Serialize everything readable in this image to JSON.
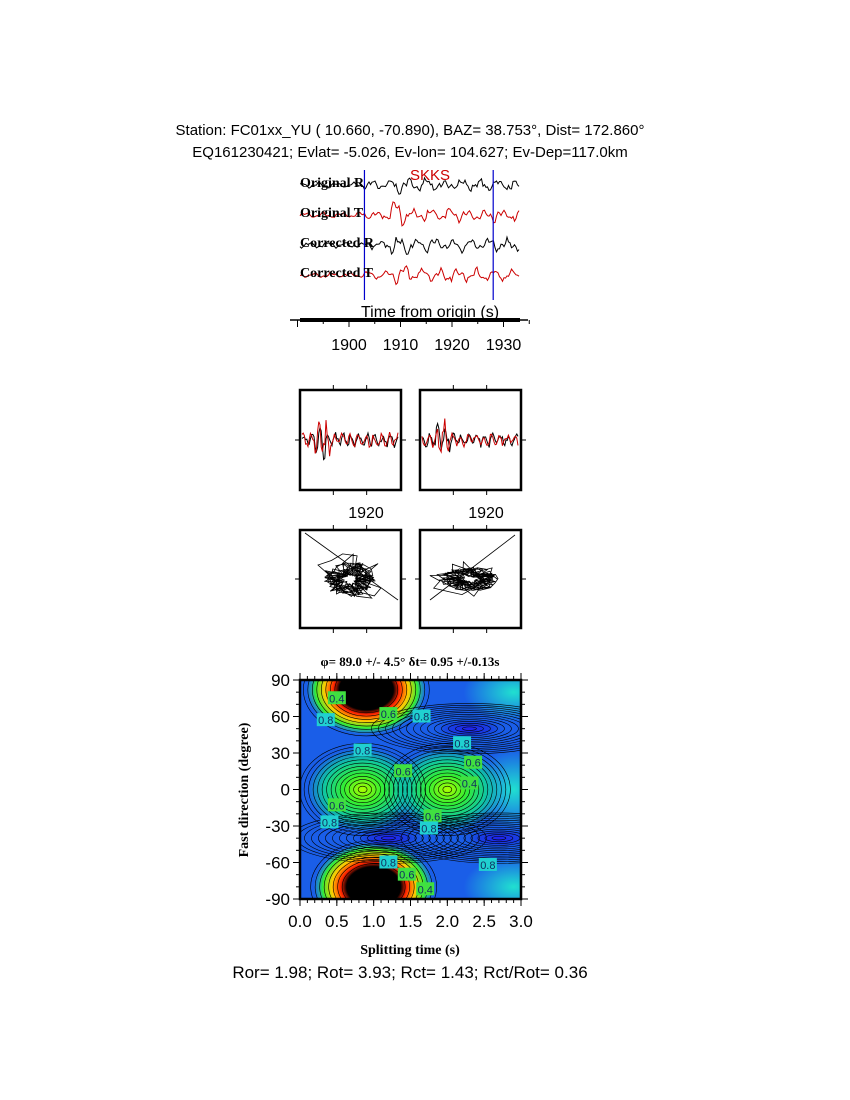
{
  "header": {
    "line1": "Station: FC01xx_YU (  10.660,  -70.890), BAZ=   38.753°, Dist=  172.860°",
    "line2": "EQ161230421; Evlat=  -5.026, Ev-lon= 104.627; Ev-Dep=117.0km"
  },
  "chart_data": [
    {
      "type": "line",
      "name": "waveforms",
      "phase_label": "SKKS",
      "traces": [
        "Original R",
        "Original T",
        "Corrected R",
        "Corrected T"
      ],
      "trace_colors": [
        "#000000",
        "#cc0000",
        "#000000",
        "#cc0000"
      ],
      "xlabel": "Time from origin (s)",
      "xticks": [
        "1900",
        "1910",
        "1920",
        "1930"
      ],
      "xlim": [
        1889,
        1935
      ],
      "window_markers_s": [
        1903,
        1928
      ],
      "marker_color": "#0000cc"
    },
    {
      "type": "line",
      "name": "fast-slow-components",
      "panels": [
        "original",
        "corrected"
      ],
      "xticks": [
        "1920"
      ]
    },
    {
      "type": "scatter",
      "name": "particle-motion",
      "panels": [
        "original",
        "corrected"
      ]
    },
    {
      "type": "heatmap",
      "name": "energy-grid",
      "title": "φ= 89.0 +/- 4.5° δt= 0.95 +/-0.13s",
      "xlabel": "Splitting time (s)",
      "ylabel": "Fast direction (degree)",
      "xticks": [
        "0.0",
        "0.5",
        "1.0",
        "1.5",
        "2.0",
        "2.5",
        "3.0"
      ],
      "yticks": [
        "90",
        "60",
        "30",
        "0",
        "-30",
        "-60",
        "-90"
      ],
      "xlim": [
        0,
        3
      ],
      "ylim": [
        -90,
        90
      ],
      "contour_labels": [
        {
          "text": "0.4",
          "x": 0.5,
          "y": 75
        },
        {
          "text": "0.8",
          "x": 0.35,
          "y": 57
        },
        {
          "text": "0.6",
          "x": 1.2,
          "y": 62
        },
        {
          "text": "0.8",
          "x": 1.65,
          "y": 60
        },
        {
          "text": "0.8",
          "x": 0.85,
          "y": 32
        },
        {
          "text": "0.8",
          "x": 2.2,
          "y": 38
        },
        {
          "text": "0.6",
          "x": 2.35,
          "y": 22
        },
        {
          "text": "0.6",
          "x": 1.4,
          "y": 15
        },
        {
          "text": "0.4",
          "x": 2.3,
          "y": 5
        },
        {
          "text": "0.6",
          "x": 0.5,
          "y": -13
        },
        {
          "text": "0.8",
          "x": 0.4,
          "y": -27
        },
        {
          "text": "0.6",
          "x": 1.8,
          "y": -22
        },
        {
          "text": "0.8",
          "x": 1.75,
          "y": -32
        },
        {
          "text": "0.8",
          "x": 1.2,
          "y": -60
        },
        {
          "text": "0.6",
          "x": 1.45,
          "y": -70
        },
        {
          "text": "0.4",
          "x": 1.7,
          "y": -82
        },
        {
          "text": "0.8",
          "x": 2.55,
          "y": -62
        }
      ],
      "features": [
        {
          "kind": "min",
          "x": 0.85,
          "y": 0,
          "color": "#55ff00"
        },
        {
          "kind": "min",
          "x": 2.0,
          "y": 0,
          "color": "#55ff00"
        },
        {
          "kind": "max",
          "x": 0.9,
          "y": 82,
          "color": "#ff3300"
        },
        {
          "kind": "max",
          "x": 1.0,
          "y": -80,
          "color": "#ff3300"
        },
        {
          "kind": "trough",
          "x": 1.2,
          "y": -40,
          "color": "#2020ff"
        },
        {
          "kind": "trough",
          "x": 2.3,
          "y": 50,
          "color": "#2020ff"
        },
        {
          "kind": "trough",
          "x": 2.7,
          "y": -40,
          "color": "#2040ff"
        }
      ]
    }
  ],
  "footer": "Ror= 1.98; Rot= 3.93; Rct= 1.43; Rct/Rot= 0.36"
}
